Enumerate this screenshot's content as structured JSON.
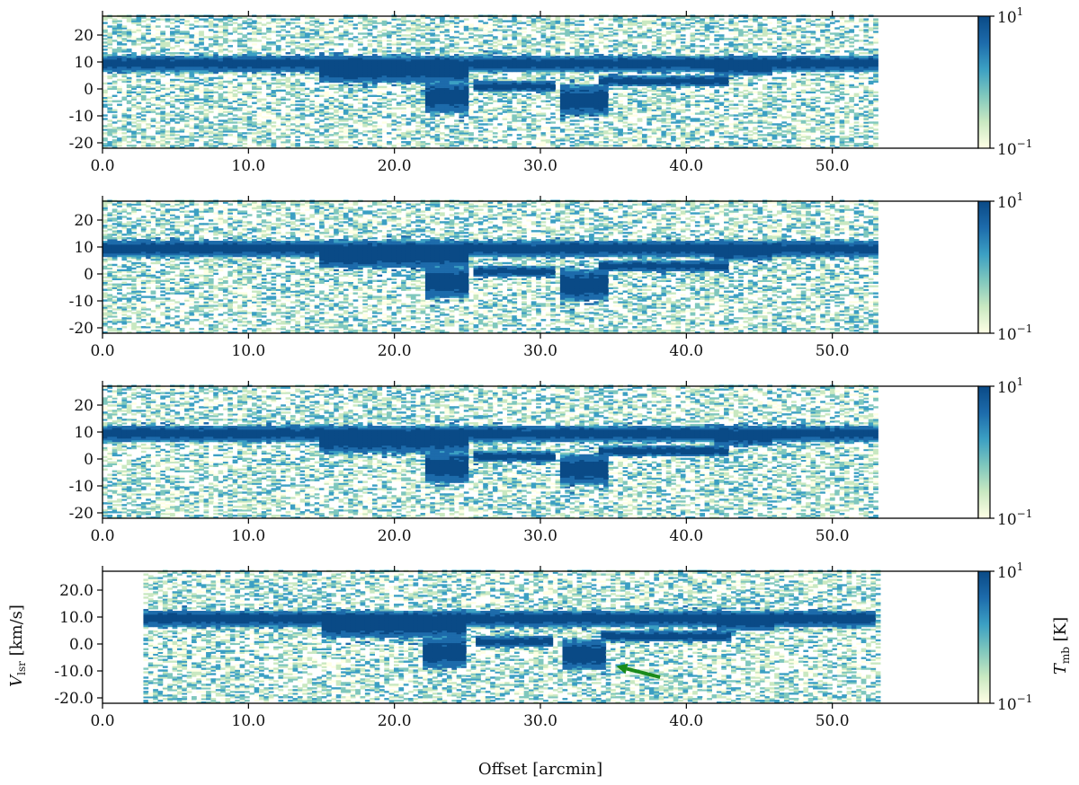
{
  "chart_data": {
    "type": "heatmap",
    "colormap": [
      "#ffffe5",
      "#c9e8c1",
      "#7fc7bd",
      "#3b9fc3",
      "#1d6bab",
      "#0a4a86"
    ],
    "xlabel": "Offset [arcmin]",
    "ylabel": {
      "main": "V",
      "sub": "lsr",
      "unit": " [km/s]"
    },
    "colorbar_label": {
      "main": "T",
      "sub": "mb",
      "unit": " [K]"
    },
    "colorbar": {
      "scale": "log",
      "range": [
        0.1,
        10
      ],
      "ticks": [
        {
          "value": 10,
          "base": "10",
          "exp": "1"
        },
        {
          "value": 0.1,
          "base": "10",
          "exp": "−1"
        }
      ]
    },
    "xlim": [
      0,
      60
    ],
    "ylim": [
      -22,
      27
    ],
    "x_ticks": [
      {
        "value": 0,
        "label": "0.0"
      },
      {
        "value": 10,
        "label": "10.0"
      },
      {
        "value": 20,
        "label": "20.0"
      },
      {
        "value": 30,
        "label": "30.0"
      },
      {
        "value": 40,
        "label": "40.0"
      },
      {
        "value": 50,
        "label": "50.0"
      }
    ],
    "arrow": {
      "from": [
        38.2,
        -12.3
      ],
      "to": [
        35.2,
        -8.2
      ],
      "color": "#1a8a1a"
    },
    "panels": [
      {
        "id": "panel-1",
        "data_range": [
          0,
          53
        ],
        "y_ticks": [
          {
            "value": 20,
            "label": "20"
          },
          {
            "value": 10,
            "label": "10"
          },
          {
            "value": 0,
            "label": "0"
          },
          {
            "value": -10,
            "label": "-10"
          },
          {
            "value": -20,
            "label": "-20"
          }
        ]
      },
      {
        "id": "panel-2",
        "data_range": [
          0,
          53
        ],
        "y_ticks": [
          {
            "value": 20,
            "label": "20"
          },
          {
            "value": 10,
            "label": "10"
          },
          {
            "value": 0,
            "label": "0"
          },
          {
            "value": -10,
            "label": "-10"
          },
          {
            "value": -20,
            "label": "-20"
          }
        ]
      },
      {
        "id": "panel-3",
        "data_range": [
          0,
          53
        ],
        "y_ticks": [
          {
            "value": 20,
            "label": "20"
          },
          {
            "value": 10,
            "label": "10"
          },
          {
            "value": 0,
            "label": "0"
          },
          {
            "value": -10,
            "label": "-10"
          },
          {
            "value": -20,
            "label": "-20"
          }
        ]
      },
      {
        "id": "panel-4",
        "data_range": [
          2.8,
          53
        ],
        "y_ticks": [
          {
            "value": 20,
            "label": "20.0"
          },
          {
            "value": 10,
            "label": "10.0"
          },
          {
            "value": 0,
            "label": "0.0"
          },
          {
            "value": -10,
            "label": "-10.0"
          },
          {
            "value": -20,
            "label": "-20.0"
          }
        ]
      }
    ],
    "emission_features": [
      {
        "name": "main-ridge",
        "x": [
          0,
          53
        ],
        "v_center": 9.5,
        "v_width": 3
      },
      {
        "name": "bright-core",
        "x": [
          15,
          25
        ],
        "v_center": 7,
        "v_width": 5
      },
      {
        "name": "tail-22",
        "x": [
          22,
          25
        ],
        "v_center": -3,
        "v_width": 6
      },
      {
        "name": "clump-27",
        "x": [
          25.5,
          31
        ],
        "v_center": 1,
        "v_width": 2
      },
      {
        "name": "tail-33",
        "x": [
          31.5,
          34.5
        ],
        "v_center": -4,
        "v_width": 6
      },
      {
        "name": "clump-38",
        "x": [
          34,
          43
        ],
        "v_center": 3,
        "v_width": 2
      },
      {
        "name": "clump-44",
        "x": [
          42,
          46
        ],
        "v_center": 8,
        "v_width": 3
      }
    ]
  }
}
